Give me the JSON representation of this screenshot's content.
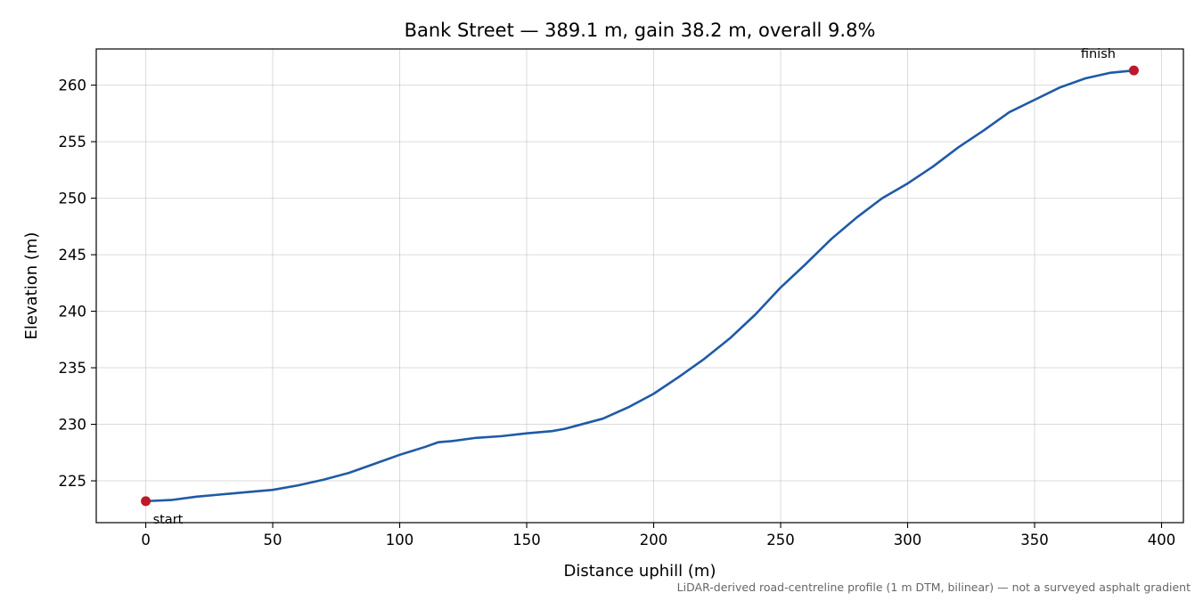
{
  "chart_data": {
    "type": "line",
    "title": "Bank Street — 389.1 m, gain 38.2 m, overall 9.8%",
    "xlabel": "Distance uphill (m)",
    "ylabel": "Elevation (m)",
    "xlim": [
      -19.5,
      408.6
    ],
    "ylim": [
      221.3,
      263.2
    ],
    "x_ticks": [
      0,
      50,
      100,
      150,
      200,
      250,
      300,
      350,
      400
    ],
    "y_ticks": [
      225,
      230,
      235,
      240,
      245,
      250,
      255,
      260
    ],
    "grid": true,
    "series": [
      {
        "color": "#1f5aa6",
        "x": [
          0,
          10,
          20,
          30,
          40,
          50,
          60,
          70,
          80,
          90,
          100,
          110,
          115,
          117,
          120,
          130,
          140,
          150,
          160,
          165,
          170,
          180,
          190,
          200,
          210,
          220,
          230,
          240,
          250,
          260,
          270,
          280,
          290,
          300,
          310,
          320,
          330,
          340,
          350,
          360,
          370,
          380,
          389.1
        ],
        "y": [
          223.2,
          223.3,
          223.6,
          223.8,
          224.0,
          224.2,
          224.6,
          225.1,
          225.7,
          226.5,
          227.3,
          228.0,
          228.4,
          228.45,
          228.5,
          228.8,
          228.95,
          229.2,
          229.4,
          229.6,
          229.9,
          230.5,
          231.5,
          232.7,
          234.2,
          235.8,
          237.6,
          239.7,
          242.1,
          244.2,
          246.4,
          248.3,
          250.0,
          251.3,
          252.8,
          254.5,
          256.0,
          257.6,
          258.7,
          259.8,
          260.6,
          261.1,
          261.3
        ]
      }
    ],
    "markers": [
      {
        "label": "start",
        "x": 0,
        "y": 223.2,
        "color": "#c0182a"
      },
      {
        "label": "finish",
        "x": 389.1,
        "y": 261.3,
        "color": "#c0182a"
      }
    ],
    "footnote": "LiDAR-derived road-centreline profile (1 m DTM, bilinear) — not a surveyed asphalt gradient"
  }
}
